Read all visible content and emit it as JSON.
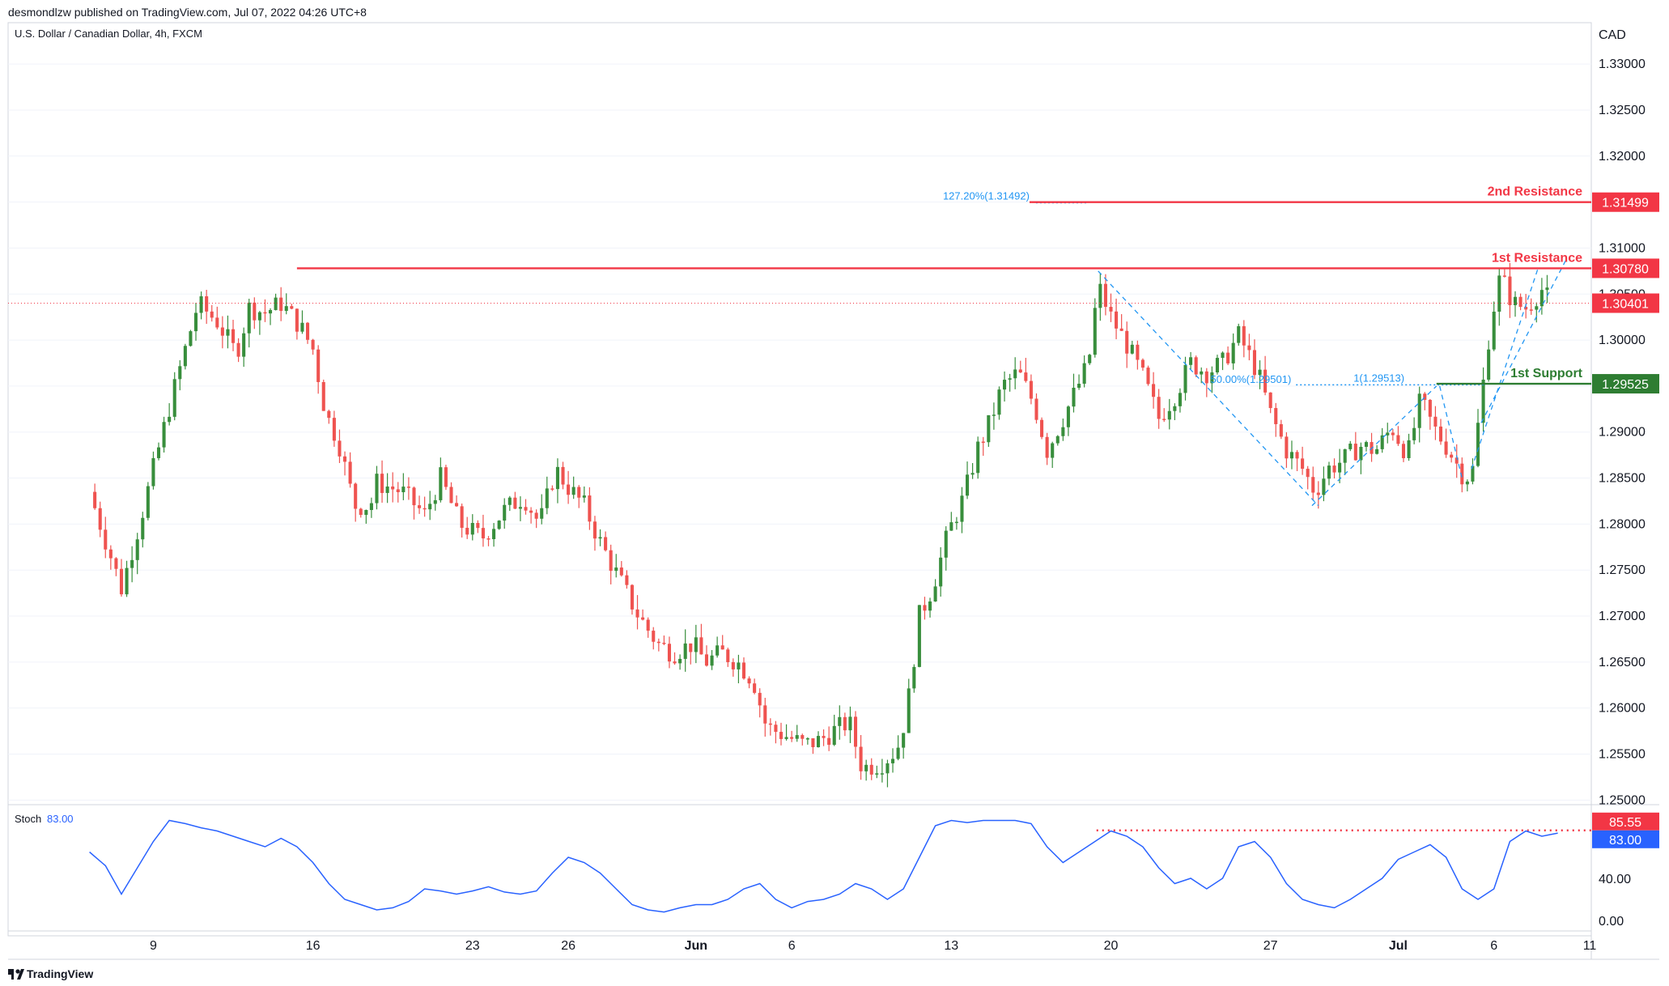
{
  "header": {
    "published_line": "desmondlzw published on TradingView.com, Jul 07, 2022 04:26 UTC+8",
    "symbol_line": "U.S. Dollar / Canadian Dollar, 4h, FXCM"
  },
  "footer": {
    "brand": "TradingView"
  },
  "colors": {
    "up": "#388e3c",
    "down": "#ef5350",
    "resistance": "#f23645",
    "support": "#2e7d32",
    "stoch": "#2962ff",
    "fib": "#2196f3",
    "grid": "#e0e3eb"
  },
  "chart_data": [
    {
      "type": "candlestick",
      "title": "U.S. Dollar / Canadian Dollar, 4h, FXCM",
      "currency": "CAD",
      "ylim": [
        1.2495,
        1.3345
      ],
      "y_ticks": [
        "1.33000",
        "1.32500",
        "1.32000",
        "1.31500",
        "1.31000",
        "1.30500",
        "1.30000",
        "1.29500",
        "1.29000",
        "1.28500",
        "1.28000",
        "1.27500",
        "1.27000",
        "1.26500",
        "1.26000",
        "1.25500",
        "1.25000"
      ],
      "x_ticks": [
        {
          "label": "9",
          "bold": false,
          "pos": 2
        },
        {
          "label": "16",
          "bold": false,
          "pos": 7
        },
        {
          "label": "23",
          "bold": false,
          "pos": 12
        },
        {
          "label": "26",
          "bold": false,
          "pos": 15
        },
        {
          "label": "Jun",
          "bold": true,
          "pos": 19
        },
        {
          "label": "6",
          "bold": false,
          "pos": 22
        },
        {
          "label": "13",
          "bold": false,
          "pos": 27
        },
        {
          "label": "20",
          "bold": false,
          "pos": 32
        },
        {
          "label": "27",
          "bold": false,
          "pos": 37
        },
        {
          "label": "Jul",
          "bold": true,
          "pos": 41
        },
        {
          "label": "6",
          "bold": false,
          "pos": 44
        },
        {
          "label": "11",
          "bold": false,
          "pos": 47
        }
      ],
      "price_path": [
        [
          0,
          1.2835
        ],
        [
          1,
          1.273
        ],
        [
          1.6,
          1.2805
        ],
        [
          2,
          1.286
        ],
        [
          2.6,
          1.294
        ],
        [
          3,
          1.299
        ],
        [
          3.4,
          1.304
        ],
        [
          4,
          1.302
        ],
        [
          4.6,
          1.2985
        ],
        [
          5,
          1.3035
        ],
        [
          5.5,
          1.303
        ],
        [
          6,
          1.304
        ],
        [
          6.6,
          1.3015
        ],
        [
          7,
          1.299
        ],
        [
          7.4,
          1.292
        ],
        [
          7.8,
          1.289
        ],
        [
          8.3,
          1.282
        ],
        [
          8.8,
          1.282
        ],
        [
          9,
          1.2845
        ],
        [
          9.8,
          1.2835
        ],
        [
          10.5,
          1.281
        ],
        [
          11,
          1.285
        ],
        [
          11.6,
          1.28
        ],
        [
          12.3,
          1.2785
        ],
        [
          13,
          1.2815
        ],
        [
          13.6,
          1.283
        ],
        [
          14.1,
          1.28
        ],
        [
          14.6,
          1.286
        ],
        [
          15,
          1.284
        ],
        [
          15.5,
          1.282
        ],
        [
          16,
          1.278
        ],
        [
          16.6,
          1.274
        ],
        [
          17.2,
          1.27
        ],
        [
          17.8,
          1.267
        ],
        [
          18.3,
          1.266
        ],
        [
          18.9,
          1.267
        ],
        [
          19.3,
          1.265
        ],
        [
          19.8,
          1.266
        ],
        [
          20.3,
          1.265
        ],
        [
          20.8,
          1.263
        ],
        [
          21.2,
          1.258
        ],
        [
          21.8,
          1.257
        ],
        [
          22.4,
          1.256
        ],
        [
          22.9,
          1.2565
        ],
        [
          23.3,
          1.2575
        ],
        [
          23.8,
          1.2585
        ],
        [
          24.2,
          1.2535
        ],
        [
          24.8,
          1.254
        ],
        [
          25.3,
          1.2555
        ],
        [
          25.6,
          1.2595
        ],
        [
          26.0,
          1.27
        ],
        [
          26.4,
          1.273
        ],
        [
          26.9,
          1.279
        ],
        [
          27.4,
          1.283
        ],
        [
          27.8,
          1.288
        ],
        [
          28.2,
          1.291
        ],
        [
          28.6,
          1.295
        ],
        [
          29.1,
          1.2965
        ],
        [
          29.6,
          1.293
        ],
        [
          30.0,
          1.288
        ],
        [
          30.5,
          1.2915
        ],
        [
          30.9,
          1.2945
        ],
        [
          31.3,
          1.2975
        ],
        [
          31.6,
          1.306
        ],
        [
          32.0,
          1.3025
        ],
        [
          32.5,
          1.2995
        ],
        [
          33.0,
          1.296
        ],
        [
          33.5,
          1.2915
        ],
        [
          34.0,
          1.294
        ],
        [
          34.5,
          1.2975
        ],
        [
          35.0,
          1.2965
        ],
        [
          35.5,
          1.2975
        ],
        [
          36.0,
          1.3005
        ],
        [
          36.6,
          1.2965
        ],
        [
          37.0,
          1.292
        ],
        [
          37.5,
          1.288
        ],
        [
          38.0,
          1.286
        ],
        [
          38.4,
          1.2835
        ],
        [
          38.8,
          1.286
        ],
        [
          39.3,
          1.287
        ],
        [
          39.8,
          1.2885
        ],
        [
          40.3,
          1.288
        ],
        [
          40.8,
          1.2905
        ],
        [
          41.3,
          1.2875
        ],
        [
          41.7,
          1.2935
        ],
        [
          42.1,
          1.2905
        ],
        [
          42.6,
          1.288
        ],
        [
          43.0,
          1.2855
        ],
        [
          43.3,
          1.285
        ],
        [
          43.6,
          1.2935
        ],
        [
          43.9,
          1.302
        ],
        [
          44.2,
          1.307
        ],
        [
          44.6,
          1.304
        ],
        [
          45.0,
          1.3035
        ],
        [
          45.5,
          1.3055
        ],
        [
          45.8,
          1.304
        ]
      ],
      "indicator": {
        "name": "Stoch",
        "value": "83.00",
        "ylim": [
          -10,
          110
        ],
        "ticks": [
          "40.00",
          "0.00"
        ],
        "level": 85.55
      },
      "stoch_path": [
        [
          0,
          65
        ],
        [
          0.5,
          52
        ],
        [
          1,
          25
        ],
        [
          1.5,
          50
        ],
        [
          2,
          75
        ],
        [
          2.5,
          95
        ],
        [
          3,
          92
        ],
        [
          3.5,
          88
        ],
        [
          4,
          85
        ],
        [
          5,
          75
        ],
        [
          5.5,
          70
        ],
        [
          6,
          78
        ],
        [
          6.5,
          70
        ],
        [
          7,
          55
        ],
        [
          7.5,
          35
        ],
        [
          8,
          20
        ],
        [
          8.5,
          15
        ],
        [
          9,
          10
        ],
        [
          9.5,
          12
        ],
        [
          10,
          18
        ],
        [
          10.5,
          30
        ],
        [
          11,
          28
        ],
        [
          11.5,
          25
        ],
        [
          12,
          28
        ],
        [
          12.5,
          32
        ],
        [
          13,
          27
        ],
        [
          13.5,
          25
        ],
        [
          14,
          28
        ],
        [
          14.5,
          45
        ],
        [
          15,
          60
        ],
        [
          15.5,
          55
        ],
        [
          16,
          45
        ],
        [
          16.5,
          30
        ],
        [
          17,
          15
        ],
        [
          17.5,
          10
        ],
        [
          18,
          8
        ],
        [
          18.5,
          12
        ],
        [
          19,
          15
        ],
        [
          19.5,
          15
        ],
        [
          20,
          20
        ],
        [
          20.5,
          30
        ],
        [
          21,
          35
        ],
        [
          21.5,
          20
        ],
        [
          22,
          12
        ],
        [
          22.5,
          18
        ],
        [
          23,
          20
        ],
        [
          23.5,
          25
        ],
        [
          24,
          35
        ],
        [
          24.5,
          30
        ],
        [
          25,
          20
        ],
        [
          25.5,
          30
        ],
        [
          26,
          60
        ],
        [
          26.5,
          90
        ],
        [
          27,
          95
        ],
        [
          27.5,
          93
        ],
        [
          28,
          95
        ],
        [
          28.5,
          95
        ],
        [
          29,
          95
        ],
        [
          29.5,
          92
        ],
        [
          30,
          70
        ],
        [
          30.5,
          55
        ],
        [
          31,
          65
        ],
        [
          31.5,
          75
        ],
        [
          32,
          85
        ],
        [
          32.5,
          80
        ],
        [
          33,
          70
        ],
        [
          33.5,
          50
        ],
        [
          34,
          35
        ],
        [
          34.5,
          40
        ],
        [
          35,
          30
        ],
        [
          35.5,
          40
        ],
        [
          36,
          70
        ],
        [
          36.5,
          75
        ],
        [
          37,
          60
        ],
        [
          37.5,
          35
        ],
        [
          38,
          20
        ],
        [
          38.5,
          15
        ],
        [
          39,
          12
        ],
        [
          39.5,
          20
        ],
        [
          40,
          30
        ],
        [
          40.5,
          40
        ],
        [
          41,
          58
        ],
        [
          41.5,
          65
        ],
        [
          42,
          72
        ],
        [
          42.5,
          60
        ],
        [
          43,
          30
        ],
        [
          43.5,
          20
        ],
        [
          44,
          30
        ],
        [
          44.5,
          75
        ],
        [
          45,
          85
        ],
        [
          45.5,
          80
        ],
        [
          46,
          83
        ]
      ],
      "levels": [
        {
          "name": "2nd Resistance",
          "price_label": "1.31499",
          "value": 1.31499,
          "color": "#f23645",
          "x_from": 29.45
        },
        {
          "name": "1st Resistance",
          "price_label": "1.30780",
          "value": 1.3078,
          "color": "#f23645",
          "x_from": 6.5
        },
        {
          "name": "1st Support",
          "price_label": "1.29525",
          "value": 1.29525,
          "color": "#2e7d32",
          "x_from": 42.2
        }
      ],
      "current_price": {
        "label": "1.30401",
        "value": 1.30401
      },
      "fib_labels": [
        {
          "text": "127.20%(1.31492)",
          "x": 29.45,
          "y": 1.31492,
          "anchor": "end",
          "line_to": 31.3
        },
        {
          "text": "50.00%(1.29501)",
          "x": 37.65,
          "y": 1.29501,
          "anchor": "end",
          "line_to": null
        },
        {
          "text": "1(1.29513)",
          "x": 39.6,
          "y": 1.29513,
          "anchor": "start",
          "line_from": 37.8,
          "line_to": 43.7
        }
      ],
      "trend_lines": [
        [
          [
            31.6,
            1.3075
          ],
          [
            38.5,
            1.282
          ]
        ],
        [
          [
            38.3,
            1.282
          ],
          [
            42.2,
            1.295
          ]
        ],
        [
          [
            42.3,
            1.295
          ],
          [
            43.0,
            1.285
          ]
        ],
        [
          [
            43.3,
            1.286
          ],
          [
            45.4,
            1.308
          ]
        ],
        [
          [
            43.6,
            1.291
          ],
          [
            46.3,
            1.309
          ]
        ]
      ]
    }
  ]
}
